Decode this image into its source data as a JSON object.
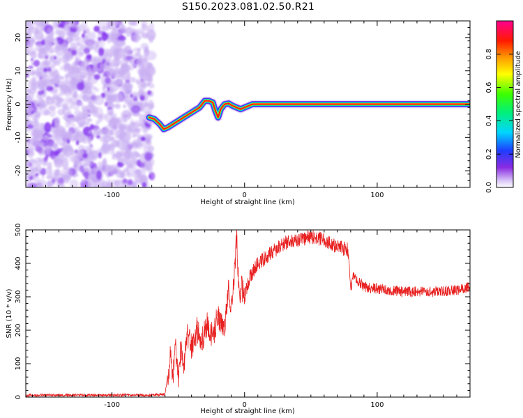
{
  "title": "S150.2023.081.02.50.R21",
  "colors": {
    "snr_line": "#e82020",
    "spectral_ridge": "#ff1b1b",
    "noise_lavender": "#c9b0f2",
    "noise_purple": "#8a3cf0",
    "axis": "#000000"
  },
  "chart_data": [
    {
      "type": "heatmap",
      "name": "spectrogram",
      "xlabel": "Height of straight line (km)",
      "ylabel": "Frequency (Hz)",
      "xlim": [
        -165,
        170
      ],
      "ylim": [
        -25,
        25
      ],
      "x_ticks": [
        -100,
        0,
        100
      ],
      "x_tick_labels": [
        "-100",
        "0",
        "100"
      ],
      "y_ticks": [
        -20,
        -10,
        0,
        10,
        20
      ],
      "y_tick_labels": [
        "-20",
        "-10",
        "0",
        "10",
        "20"
      ],
      "noise_region_x": [
        -165,
        -72
      ],
      "ridge": {
        "x": [
          -72,
          -68,
          -64,
          -61,
          -58,
          -54,
          -50,
          -46,
          -42,
          -38,
          -34,
          -30,
          -27,
          -24,
          -22,
          -20,
          -18,
          -15,
          -12,
          -9,
          -6,
          -3,
          0,
          3,
          6,
          10,
          20,
          40,
          60,
          80,
          100,
          120,
          140,
          160,
          170
        ],
        "y": [
          -4,
          -4.5,
          -6,
          -7.5,
          -7,
          -6,
          -5,
          -4,
          -3,
          -2,
          -1,
          1,
          1,
          0.5,
          -2,
          -4,
          -1.5,
          0,
          0.2,
          -0.5,
          -1,
          -1.5,
          -1,
          -0.5,
          0,
          0,
          0,
          0,
          0,
          0,
          0,
          0,
          0,
          0,
          0
        ]
      },
      "colorbar": {
        "label": "Normalized spectral amplitude",
        "ticks": [
          0.0,
          0.2,
          0.4,
          0.6,
          0.8
        ],
        "tick_labels": [
          "0.0",
          "0.2",
          "0.4",
          "0.6",
          "0.8"
        ],
        "range": [
          0,
          1
        ],
        "colormap": "rainbow (white → purple → blue → cyan → green → yellow → orange → red → magenta)"
      },
      "grid": false
    },
    {
      "type": "line",
      "name": "snr",
      "xlabel": "Height of straight line (km)",
      "ylabel": "SNR (10 * v/v)",
      "xlim": [
        -165,
        170
      ],
      "ylim": [
        0,
        500
      ],
      "x_ticks": [
        -100,
        0,
        100
      ],
      "x_tick_labels": [
        "-100",
        "0",
        "100"
      ],
      "y_ticks": [
        0,
        100,
        200,
        300,
        400,
        500
      ],
      "y_tick_labels": [
        "0",
        "100",
        "200",
        "300",
        "400",
        "500"
      ],
      "grid": false,
      "series": [
        {
          "x": [
            -165,
            -150,
            -120,
            -90,
            -70,
            -60,
            -56,
            -54,
            -52,
            -50,
            -48,
            -46,
            -44,
            -40,
            -36,
            -32,
            -28,
            -24,
            -20,
            -16,
            -12,
            -10,
            -8,
            -6,
            -4,
            -2,
            0,
            4,
            10,
            20,
            30,
            40,
            50,
            60,
            70,
            78,
            80,
            82,
            90,
            100,
            120,
            140,
            160,
            170
          ],
          "y": [
            5,
            6,
            6,
            6,
            6,
            8,
            120,
            60,
            140,
            40,
            150,
            80,
            190,
            150,
            200,
            170,
            220,
            180,
            250,
            190,
            320,
            270,
            340,
            480,
            300,
            330,
            300,
            360,
            400,
            430,
            460,
            470,
            480,
            470,
            450,
            440,
            320,
            360,
            330,
            325,
            315,
            315,
            320,
            330
          ]
        }
      ],
      "annotations": {
        "noise_floor_level": 6,
        "spike_peak_x": -6,
        "spike_peak_y": 480,
        "step_drop_x": 80
      }
    }
  ]
}
